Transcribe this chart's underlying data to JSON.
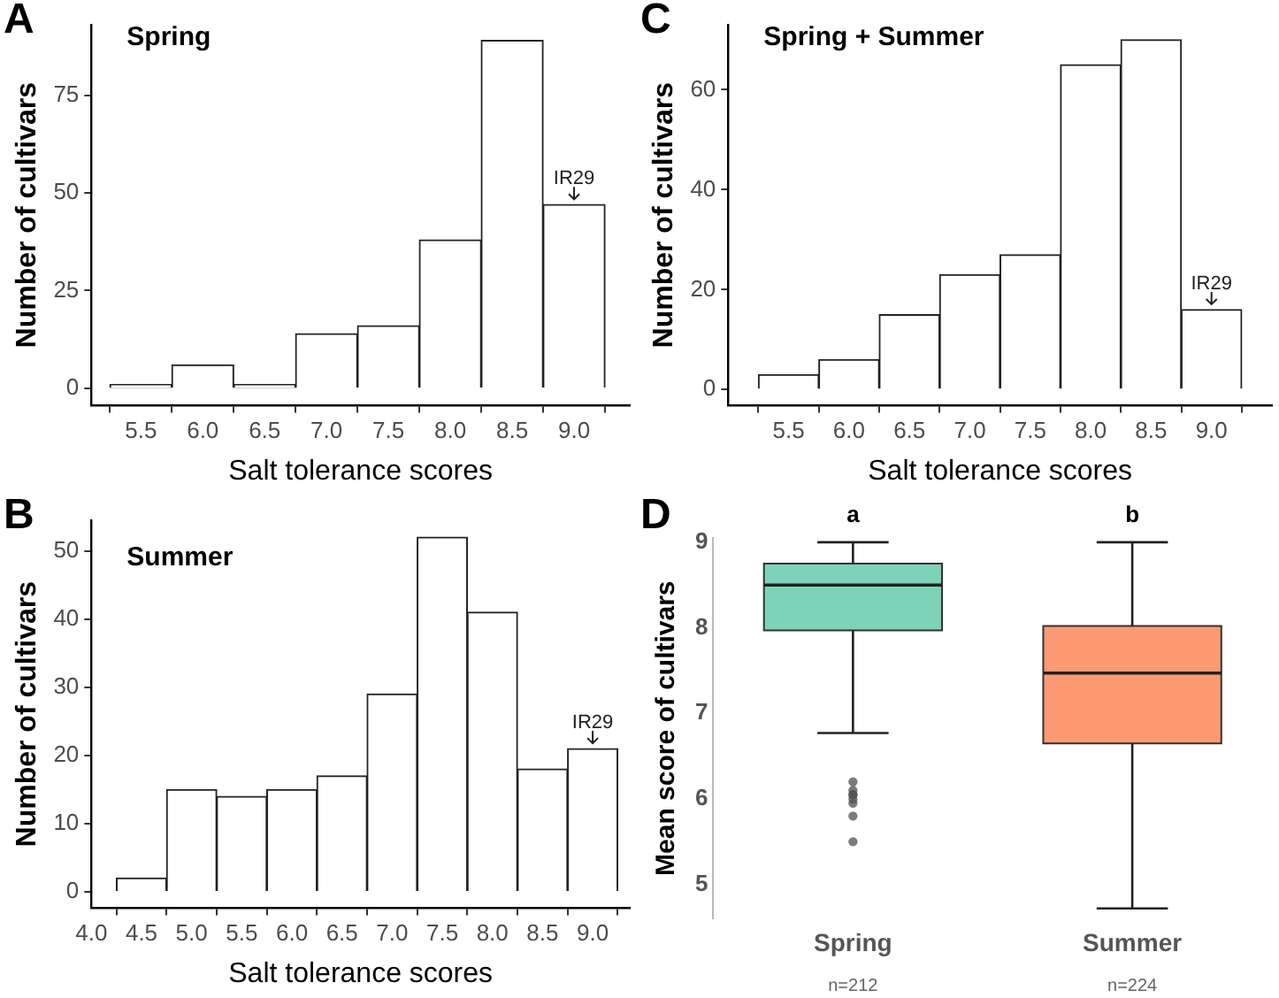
{
  "chart_data": [
    {
      "type": "histogram",
      "title": "Spring",
      "xlabel": "Salt tolerance scores",
      "ylabel": "Number of cultivars",
      "color": "#ffffff",
      "bins": [
        5.25,
        5.75,
        6.25,
        6.75,
        7.25,
        7.75,
        8.25,
        8.75,
        9.25
      ],
      "values": [
        1,
        6,
        1,
        14,
        16,
        38,
        89,
        47
      ],
      "xlim": [
        5.1,
        9.45
      ],
      "xticks": [
        5.5,
        {
          "value": 6,
          "label": "6.0"
        },
        6.5,
        {
          "value": 7,
          "label": "7.0"
        },
        7.5,
        {
          "value": 8,
          "label": "8.0"
        },
        8.5,
        {
          "value": 9,
          "label": "9.0"
        }
      ],
      "ylim": [
        -4.4,
        93
      ],
      "yticks": [
        0,
        25,
        50,
        75
      ],
      "grid": false,
      "annotations": [
        "A",
        "IR29"
      ]
    },
    {
      "type": "histogram",
      "title": "Spring + Summer",
      "xlabel": "Salt tolerance scores",
      "ylabel": "Number of cultivars",
      "color": "#ffffff",
      "bins": [
        5.25,
        5.75,
        6.25,
        6.75,
        7.25,
        7.75,
        8.25,
        8.75,
        9.25
      ],
      "values": [
        3,
        6,
        15,
        23,
        27,
        65,
        70,
        16
      ],
      "xlim": [
        5.0,
        9.5
      ],
      "xticks": [
        5.5,
        {
          "value": 6,
          "label": "6.0"
        },
        6.5,
        {
          "value": 7,
          "label": "7.0"
        },
        7.5,
        {
          "value": 8,
          "label": "8.0"
        },
        8.5,
        {
          "value": 9,
          "label": "9.0"
        }
      ],
      "ylim": [
        -3.2,
        73
      ],
      "yticks": [
        0,
        20,
        40,
        60
      ],
      "grid": false,
      "annotations": [
        "C",
        "IR29"
      ]
    },
    {
      "type": "histogram",
      "title": "Summer",
      "xlabel": "Salt tolerance scores",
      "ylabel": "Number of cultivars",
      "color": "#ffffff",
      "bins": [
        4.25,
        4.75,
        5.25,
        5.75,
        6.25,
        6.75,
        7.25,
        7.75,
        8.25,
        8.75,
        9.25
      ],
      "values": [
        2,
        15,
        14,
        15,
        17,
        29,
        52,
        41,
        18,
        21
      ],
      "xlim": [
        4.0,
        9.37
      ],
      "xticks": [
        {
          "value": 4,
          "label": "4.0"
        },
        4.5,
        {
          "value": 5,
          "label": "5.0"
        },
        5.5,
        {
          "value": 6,
          "label": "6.0"
        },
        6.5,
        {
          "value": 7,
          "label": "7.0"
        },
        7.5,
        {
          "value": 8,
          "label": "8.0"
        },
        8.5,
        {
          "value": 9,
          "label": "9.0"
        }
      ],
      "ylim": [
        -2.4,
        54.5
      ],
      "yticks": [
        0,
        10,
        20,
        30,
        40,
        50
      ],
      "grid": false,
      "annotations": [
        "B",
        "IR29"
      ]
    },
    {
      "type": "box",
      "ylabel": "Mean score of cultivars",
      "categories": [
        "Spring",
        "Summer"
      ],
      "colors": [
        "#7dd3b7",
        "#fc9a74"
      ],
      "boxes": [
        {
          "low": 6.77,
          "q1": 7.97,
          "median": 8.5,
          "q3": 8.75,
          "high": 9,
          "outliers": [
            6.2,
            6.1,
            6.05,
            6.05,
            6.0,
            5.95,
            5.8,
            5.5
          ]
        },
        {
          "low": 4.72,
          "q1": 6.65,
          "median": 7.47,
          "q3": 8.02,
          "high": 9
        }
      ],
      "ylim": [
        4.6,
        9.05
      ],
      "yticks": [
        5,
        6,
        7,
        8,
        9
      ],
      "grid": false,
      "annotations": [
        "D",
        "a",
        "b",
        "n=212",
        "n=224"
      ]
    }
  ]
}
